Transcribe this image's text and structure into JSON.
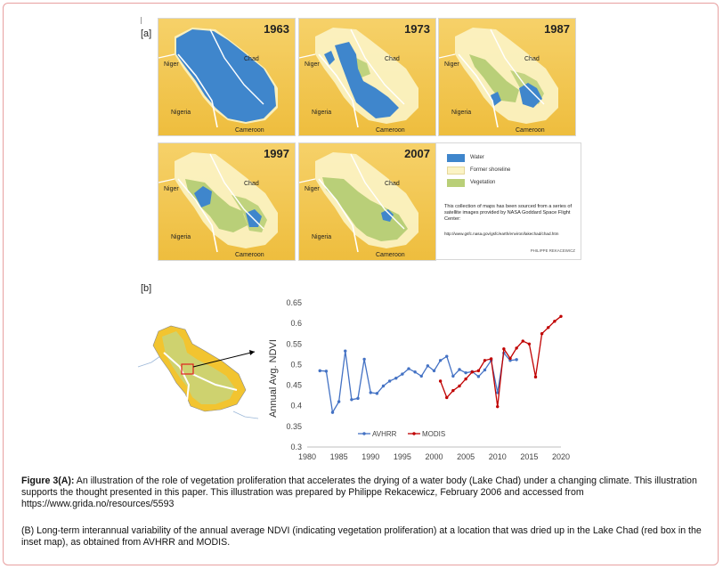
{
  "panel_a_label": "[a]",
  "panel_b_label": "[b]",
  "maps": [
    {
      "year": "1963",
      "labels": {
        "niger": "Niger",
        "chad": "Chad",
        "nigeria": "Nigeria",
        "cameroon": "Cameroon"
      }
    },
    {
      "year": "1973",
      "labels": {
        "niger": "Niger",
        "chad": "Chad",
        "nigeria": "Nigeria",
        "cameroon": "Cameroon"
      }
    },
    {
      "year": "1987",
      "labels": {
        "niger": "Niger",
        "chad": "Chad",
        "nigeria": "Nigeria",
        "cameroon": "Cameroon"
      }
    },
    {
      "year": "1997",
      "labels": {
        "niger": "Niger",
        "chad": "Chad",
        "nigeria": "Nigeria",
        "cameroon": "Cameroon"
      }
    },
    {
      "year": "2007",
      "labels": {
        "niger": "Niger",
        "chad": "Chad",
        "nigeria": "Nigeria",
        "cameroon": "Cameroon"
      }
    }
  ],
  "map_legend": {
    "items": [
      {
        "label": "Water",
        "color": "#3f86cc"
      },
      {
        "label": "Former shoreline",
        "color": "#fbf3c4"
      },
      {
        "label": "Vegetation",
        "color": "#b9cf78"
      }
    ],
    "note": "This collection of maps has been sourced from a series of satellite images provided by NASA Goddard Space Flight Center:",
    "url": "http://www.gsfc.nasa.gov/gsfc/earth/environ/lakechad/chad.htm",
    "credit": "PHILIPPE REKACEWICZ"
  },
  "colors": {
    "map_bg": "#eebd3d",
    "water": "#3f86cc",
    "former_shoreline": "#fbf3c4",
    "vegetation": "#b9cf78",
    "avhrr": "#4472c4",
    "modis": "#c00000",
    "inset_box": "#e02020"
  },
  "chart_data": {
    "type": "line",
    "title": "",
    "xlabel": "",
    "ylabel": "Annual Avg. NDVI",
    "xlim": [
      1980,
      2020
    ],
    "ylim": [
      0.3,
      0.65
    ],
    "xticks": [
      "1980",
      "1985",
      "1990",
      "1995",
      "2000",
      "2005",
      "2010",
      "2015",
      "2020"
    ],
    "yticks": [
      "0.3",
      "0.35",
      "0.4",
      "0.45",
      "0.5",
      "0.55",
      "0.6",
      "0.65"
    ],
    "grid": false,
    "legend_position": "bottom-center",
    "series": [
      {
        "name": "AVHRR",
        "color": "#4472c4",
        "x": [
          1982,
          1983,
          1984,
          1985,
          1986,
          1987,
          1988,
          1989,
          1990,
          1991,
          1992,
          1993,
          1994,
          1995,
          1996,
          1997,
          1998,
          1999,
          2000,
          2001,
          2002,
          2003,
          2004,
          2005,
          2006,
          2007,
          2008,
          2009,
          2010,
          2011,
          2012,
          2013
        ],
        "y": [
          0.485,
          0.484,
          0.384,
          0.41,
          0.533,
          0.415,
          0.418,
          0.513,
          0.432,
          0.43,
          0.448,
          0.46,
          0.467,
          0.477,
          0.49,
          0.482,
          0.472,
          0.497,
          0.485,
          0.51,
          0.52,
          0.472,
          0.488,
          0.48,
          0.483,
          0.471,
          0.487,
          0.51,
          0.432,
          0.528,
          0.51,
          0.512
        ]
      },
      {
        "name": "MODIS",
        "color": "#c00000",
        "x": [
          2001,
          2002,
          2003,
          2004,
          2005,
          2006,
          2007,
          2008,
          2009,
          2010,
          2011,
          2012,
          2013,
          2014,
          2015,
          2016,
          2017,
          2018,
          2019,
          2020
        ],
        "y": [
          0.46,
          0.42,
          0.437,
          0.448,
          0.465,
          0.482,
          0.485,
          0.51,
          0.514,
          0.398,
          0.538,
          0.515,
          0.54,
          0.557,
          0.55,
          0.47,
          0.575,
          0.59,
          0.605,
          0.617
        ]
      }
    ]
  },
  "caption": {
    "a_lead": "Figure 3(A):",
    "a_text": " An illustration of the role of vegetation proliferation that accelerates the drying of a water body (Lake Chad) under a changing climate. This illustration supports the thought presented in this paper. This illustration was prepared by Philippe Rekacewicz, February 2006 and accessed from https://www.grida.no/resources/5593",
    "b_text": "(B) Long-term interannual variability of the annual average NDVI (indicating vegetation proliferation) at a location that was dried up in the Lake Chad (red box in the inset map), as obtained from AVHRR and MODIS."
  }
}
